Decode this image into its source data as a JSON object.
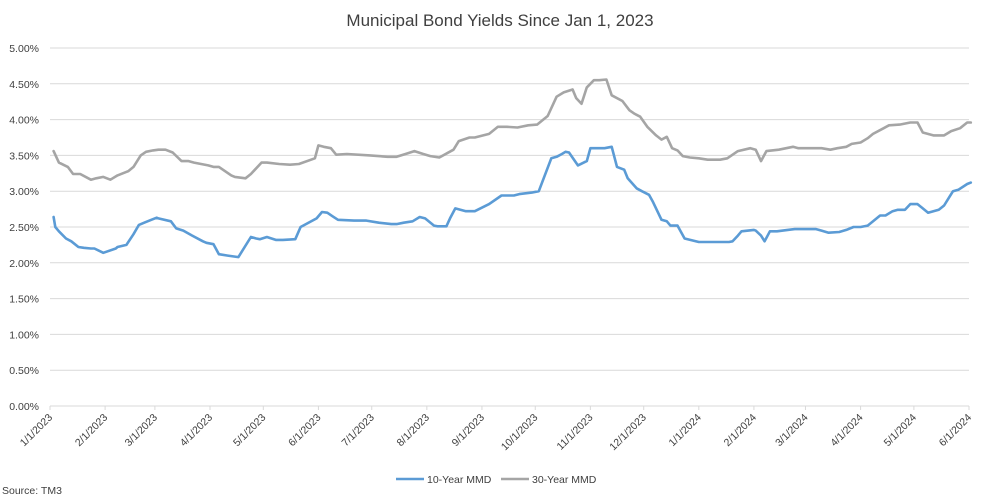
{
  "chart_data": {
    "type": "line",
    "title": "Municipal Bond Yields Since Jan 1, 2023",
    "source": "Source: TM3",
    "xlabel": "",
    "ylabel": "",
    "ylim": [
      0,
      5
    ],
    "yticks": [
      "0.00%",
      "0.50%",
      "1.00%",
      "1.50%",
      "2.00%",
      "2.50%",
      "3.00%",
      "3.50%",
      "4.00%",
      "4.50%",
      "5.00%"
    ],
    "xticks": [
      "1/1/2023",
      "2/1/2023",
      "3/1/2023",
      "4/1/2023",
      "5/1/2023",
      "6/1/2023",
      "7/1/2023",
      "8/1/2023",
      "9/1/2023",
      "10/1/2023",
      "11/1/2023",
      "12/1/2023",
      "1/1/2024",
      "2/1/2024",
      "3/1/2024",
      "4/1/2024",
      "5/1/2024",
      "6/1/2024"
    ],
    "grid": true,
    "legend": "bottom-center",
    "series": [
      {
        "name": "10-Year MMD",
        "color": "#5b9bd5",
        "x": [
          "2023-01-03",
          "2023-01-04",
          "2023-01-06",
          "2023-01-10",
          "2023-01-13",
          "2023-01-17",
          "2023-01-20",
          "2023-01-24",
          "2023-01-26",
          "2023-01-31",
          "2023-02-07",
          "2023-02-08",
          "2023-02-13",
          "2023-02-17",
          "2023-02-20",
          "2023-02-23",
          "2023-02-27",
          "2023-03-02",
          "2023-03-03",
          "2023-03-10",
          "2023-03-13",
          "2023-03-17",
          "2023-03-22",
          "2023-03-28",
          "2023-03-30",
          "2023-04-03",
          "2023-04-06",
          "2023-04-11",
          "2023-04-17",
          "2023-04-18",
          "2023-04-24",
          "2023-04-27",
          "2023-04-29",
          "2023-05-03",
          "2023-05-08",
          "2023-05-12",
          "2023-05-19",
          "2023-05-22",
          "2023-05-31",
          "2023-06-03",
          "2023-06-06",
          "2023-06-09",
          "2023-06-12",
          "2023-06-21",
          "2023-06-28",
          "2023-07-05",
          "2023-07-12",
          "2023-07-15",
          "2023-07-19",
          "2023-07-24",
          "2023-07-28",
          "2023-07-31",
          "2023-08-05",
          "2023-08-07",
          "2023-08-12",
          "2023-08-14",
          "2023-08-17",
          "2023-08-23",
          "2023-08-28",
          "2023-09-05",
          "2023-09-12",
          "2023-09-19",
          "2023-09-22",
          "2023-09-29",
          "2023-10-03",
          "2023-10-06",
          "2023-10-10",
          "2023-10-13",
          "2023-10-16",
          "2023-10-18",
          "2023-10-20",
          "2023-10-25",
          "2023-10-30",
          "2023-11-01",
          "2023-11-03",
          "2023-11-06",
          "2023-11-09",
          "2023-11-13",
          "2023-11-16",
          "2023-11-20",
          "2023-11-22",
          "2023-11-27",
          "2023-11-30",
          "2023-12-04",
          "2023-12-06",
          "2023-12-11",
          "2023-12-14",
          "2023-12-16",
          "2023-12-20",
          "2023-12-24",
          "2024-01-01",
          "2024-01-18",
          "2024-01-20",
          "2024-01-23",
          "2024-01-25",
          "2024-02-01",
          "2024-02-02",
          "2024-02-05",
          "2024-02-07",
          "2024-02-10",
          "2024-02-14",
          "2024-02-20",
          "2024-02-24",
          "2024-02-27",
          "2024-03-07",
          "2024-03-10",
          "2024-03-14",
          "2024-03-20",
          "2024-03-24",
          "2024-03-28",
          "2024-04-01",
          "2024-04-05",
          "2024-04-10",
          "2024-04-12",
          "2024-04-15",
          "2024-04-19",
          "2024-04-22",
          "2024-04-26",
          "2024-04-29",
          "2024-05-03",
          "2024-05-06",
          "2024-05-09",
          "2024-05-12",
          "2024-05-15",
          "2024-05-18",
          "2024-05-21",
          "2024-05-23",
          "2024-05-26",
          "2024-05-31",
          "2024-06-02"
        ],
        "y": [
          2.64,
          2.5,
          2.44,
          2.34,
          2.3,
          2.22,
          2.21,
          2.2,
          2.2,
          2.14,
          2.2,
          2.22,
          2.25,
          2.4,
          2.53,
          2.56,
          2.6,
          2.63,
          2.62,
          2.58,
          2.48,
          2.45,
          2.38,
          2.3,
          2.28,
          2.26,
          2.12,
          2.1,
          2.08,
          2.12,
          2.36,
          2.34,
          2.33,
          2.36,
          2.32,
          2.32,
          2.33,
          2.5,
          2.62,
          2.71,
          2.7,
          2.65,
          2.6,
          2.59,
          2.59,
          2.56,
          2.54,
          2.54,
          2.56,
          2.58,
          2.64,
          2.62,
          2.52,
          2.51,
          2.51,
          2.62,
          2.76,
          2.72,
          2.72,
          2.82,
          2.94,
          2.94,
          2.96,
          2.98,
          3.0,
          3.2,
          3.46,
          3.48,
          3.52,
          3.55,
          3.54,
          3.36,
          3.42,
          3.6,
          3.6,
          3.6,
          3.6,
          3.62,
          3.34,
          3.3,
          3.18,
          3.04,
          3.0,
          2.95,
          2.86,
          2.6,
          2.58,
          2.52,
          2.52,
          2.34,
          2.29,
          2.29,
          2.3,
          2.38,
          2.44,
          2.46,
          2.45,
          2.38,
          2.3,
          2.44,
          2.44,
          2.46,
          2.47,
          2.47,
          2.47,
          2.45,
          2.42,
          2.43,
          2.46,
          2.5,
          2.5,
          2.52,
          2.62,
          2.66,
          2.66,
          2.72,
          2.74,
          2.74,
          2.82,
          2.82,
          2.76,
          2.7,
          2.72,
          2.74,
          2.8,
          2.92,
          3.0,
          3.02,
          3.1,
          3.12
        ]
      },
      {
        "name": "30-Year MMD",
        "color": "#a5a5a5",
        "x": [
          "2023-01-03",
          "2023-01-06",
          "2023-01-11",
          "2023-01-14",
          "2023-01-18",
          "2023-01-24",
          "2023-01-27",
          "2023-01-31",
          "2023-02-04",
          "2023-02-08",
          "2023-02-14",
          "2023-02-17",
          "2023-02-21",
          "2023-02-24",
          "2023-02-28",
          "2023-03-03",
          "2023-03-07",
          "2023-03-11",
          "2023-03-16",
          "2023-03-20",
          "2023-03-23",
          "2023-03-31",
          "2023-04-03",
          "2023-04-06",
          "2023-04-13",
          "2023-04-15",
          "2023-04-21",
          "2023-04-24",
          "2023-04-30",
          "2023-05-03",
          "2023-05-10",
          "2023-05-16",
          "2023-05-21",
          "2023-05-30",
          "2023-06-01",
          "2023-06-04",
          "2023-06-08",
          "2023-06-11",
          "2023-06-17",
          "2023-06-30",
          "2023-07-10",
          "2023-07-15",
          "2023-07-20",
          "2023-07-25",
          "2023-07-30",
          "2023-08-03",
          "2023-08-08",
          "2023-08-16",
          "2023-08-19",
          "2023-08-25",
          "2023-08-28",
          "2023-09-05",
          "2023-09-10",
          "2023-09-15",
          "2023-09-21",
          "2023-09-27",
          "2023-10-02",
          "2023-10-08",
          "2023-10-13",
          "2023-10-17",
          "2023-10-22",
          "2023-10-24",
          "2023-10-27",
          "2023-10-30",
          "2023-11-03",
          "2023-11-06",
          "2023-11-10",
          "2023-11-13",
          "2023-11-19",
          "2023-11-23",
          "2023-11-26",
          "2023-11-29",
          "2023-12-03",
          "2023-12-08",
          "2023-12-11",
          "2023-12-14",
          "2023-12-17",
          "2023-12-20",
          "2023-12-23",
          "2023-12-27",
          "2024-01-01",
          "2024-01-06",
          "2024-01-13",
          "2024-01-17",
          "2024-01-23",
          "2024-01-30",
          "2024-02-02",
          "2024-02-05",
          "2024-02-08",
          "2024-02-15",
          "2024-02-23",
          "2024-02-26",
          "2024-03-04",
          "2024-03-10",
          "2024-03-15",
          "2024-03-19",
          "2024-03-24",
          "2024-03-27",
          "2024-04-01",
          "2024-04-05",
          "2024-04-08",
          "2024-04-14",
          "2024-04-17",
          "2024-04-23",
          "2024-04-29",
          "2024-05-03",
          "2024-05-06",
          "2024-05-12",
          "2024-05-18",
          "2024-05-22",
          "2024-05-27",
          "2024-05-31",
          "2024-06-02"
        ],
        "y": [
          3.56,
          3.4,
          3.34,
          3.24,
          3.24,
          3.16,
          3.18,
          3.2,
          3.16,
          3.22,
          3.28,
          3.34,
          3.5,
          3.55,
          3.57,
          3.58,
          3.58,
          3.54,
          3.42,
          3.42,
          3.4,
          3.36,
          3.34,
          3.34,
          3.22,
          3.2,
          3.18,
          3.24,
          3.4,
          3.4,
          3.38,
          3.37,
          3.38,
          3.46,
          3.64,
          3.62,
          3.6,
          3.51,
          3.52,
          3.5,
          3.48,
          3.48,
          3.52,
          3.56,
          3.52,
          3.49,
          3.47,
          3.58,
          3.7,
          3.75,
          3.75,
          3.8,
          3.9,
          3.9,
          3.89,
          3.92,
          3.93,
          4.05,
          4.32,
          4.38,
          4.42,
          4.3,
          4.22,
          4.45,
          4.55,
          4.55,
          4.56,
          4.34,
          4.26,
          4.13,
          4.08,
          4.04,
          3.9,
          3.78,
          3.72,
          3.76,
          3.6,
          3.57,
          3.49,
          3.47,
          3.46,
          3.44,
          3.44,
          3.46,
          3.56,
          3.6,
          3.58,
          3.42,
          3.56,
          3.58,
          3.62,
          3.6,
          3.6,
          3.6,
          3.58,
          3.6,
          3.62,
          3.66,
          3.68,
          3.74,
          3.8,
          3.88,
          3.92,
          3.93,
          3.96,
          3.96,
          3.82,
          3.78,
          3.78,
          3.84,
          3.88,
          3.96,
          3.96
        ]
      }
    ]
  }
}
